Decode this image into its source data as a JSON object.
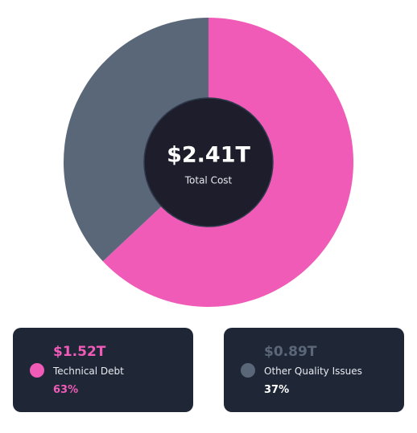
{
  "chart_data": {
    "type": "pie",
    "center_value": "$2.41T",
    "center_label": "Total Cost",
    "categories": [
      "Technical Debt",
      "Other Quality Issues"
    ],
    "values": [
      63,
      37
    ],
    "value_labels": [
      "63%",
      "37%"
    ],
    "amount_labels": [
      "$1.52T",
      "$0.89T"
    ],
    "colors": [
      "#f05bb8",
      "#5a6778"
    ]
  }
}
